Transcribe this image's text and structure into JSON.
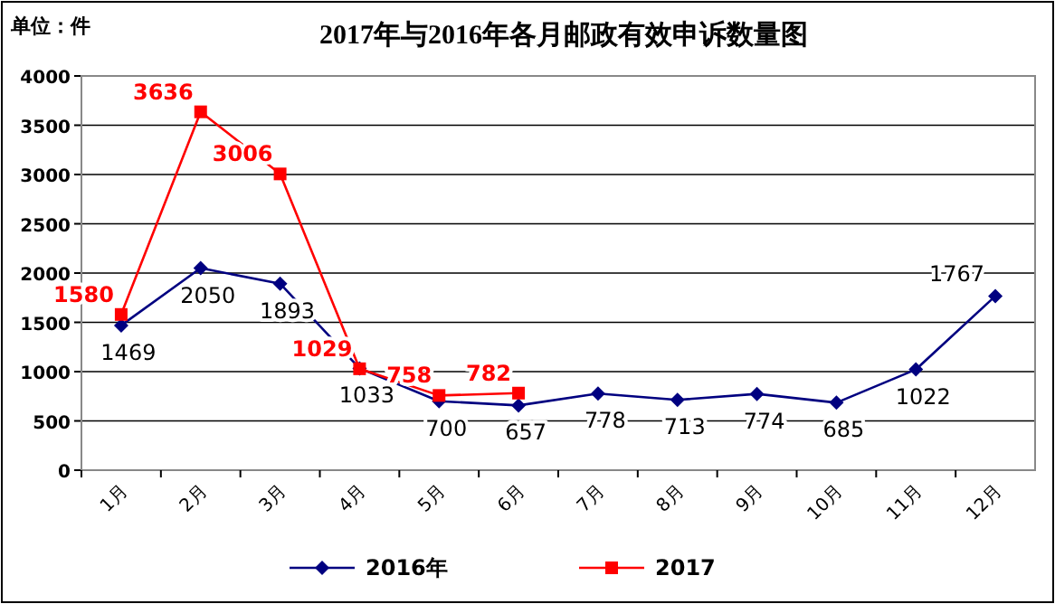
{
  "chart_data": {
    "type": "line",
    "title": "2017年与2016年各月邮政有效申诉数量图",
    "annotations": [
      "单位：件"
    ],
    "categories": [
      "1月",
      "2月",
      "3月",
      "4月",
      "5月",
      "6月",
      "7月",
      "8月",
      "9月",
      "10月",
      "11月",
      "12月"
    ],
    "series": [
      {
        "name": "2016年",
        "color": "#000080",
        "marker": "diamond",
        "values": [
          1469,
          2050,
          1893,
          1033,
          700,
          657,
          778,
          713,
          774,
          685,
          1022,
          1767
        ]
      },
      {
        "name": "2017",
        "color": "#ff0000",
        "marker": "square",
        "values": [
          1580,
          3636,
          3006,
          1029,
          758,
          782,
          null,
          null,
          null,
          null,
          null,
          null
        ]
      }
    ],
    "ylim": [
      0,
      4000
    ],
    "yticks": [
      0,
      500,
      1000,
      1500,
      2000,
      2500,
      3000,
      3500,
      4000
    ],
    "grid": "y",
    "legend": "bottom",
    "data_labels": true
  }
}
